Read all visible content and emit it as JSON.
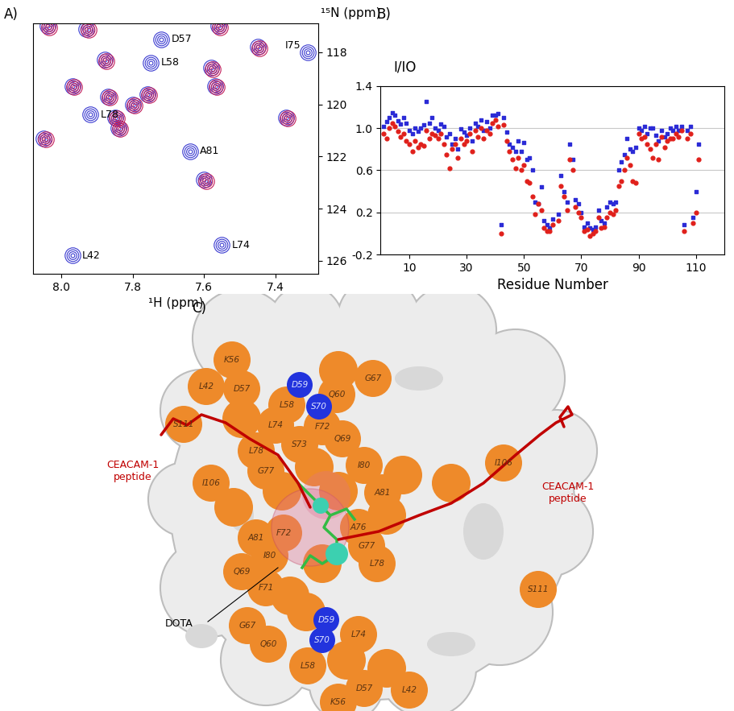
{
  "chart_data": [
    {
      "label": "A)",
      "type": "spectrum",
      "x_label": "¹H (ppm)",
      "y_label": "¹⁵N (ppm)",
      "xlim": [
        8.08,
        7.28
      ],
      "xticks": [
        8.0,
        7.8,
        7.6,
        7.4
      ],
      "ylim": [
        126.5,
        116.9
      ],
      "yticks": [
        118,
        120,
        122,
        124,
        126
      ],
      "series": [
        {
          "color": "#3a3ad0",
          "marker": "circle",
          "x": [
            8.04,
            7.93,
            7.56,
            7.45,
            7.88,
            7.97,
            7.58,
            7.87,
            7.8,
            7.76,
            7.85,
            7.84,
            8.05,
            7.57,
            7.37,
            7.6,
            7.72,
            7.75,
            7.31,
            7.92,
            7.64,
            7.55,
            7.97
          ],
          "values": [
            117.0,
            117.1,
            117.0,
            117.8,
            118.3,
            119.3,
            118.6,
            119.7,
            120.0,
            119.6,
            120.5,
            120.9,
            121.3,
            119.3,
            120.5,
            122.9,
            117.5,
            118.4,
            118.0,
            120.4,
            121.8,
            125.4,
            125.8
          ]
        },
        {
          "color": "#c41e5a",
          "marker": "circle",
          "x": [
            8.035,
            7.925,
            7.555,
            7.445,
            7.875,
            7.965,
            7.575,
            7.865,
            7.795,
            7.755,
            7.845,
            7.835,
            8.045,
            7.565,
            7.365,
            7.595
          ],
          "values": [
            117.05,
            117.15,
            117.05,
            117.85,
            118.35,
            119.35,
            118.65,
            119.75,
            120.05,
            119.65,
            120.55,
            120.95,
            121.35,
            119.35,
            120.55,
            122.95
          ]
        }
      ],
      "annotations": [
        {
          "text": "D57",
          "x": 7.72,
          "y": 117.5
        },
        {
          "text": "L58",
          "x": 7.75,
          "y": 118.4
        },
        {
          "text": "I75",
          "x": 7.31,
          "y": 118.0
        },
        {
          "text": "L78",
          "x": 7.92,
          "y": 120.4
        },
        {
          "text": "A81",
          "x": 7.64,
          "y": 121.8
        },
        {
          "text": "L74",
          "x": 7.55,
          "y": 125.4
        },
        {
          "text": "L42",
          "x": 7.97,
          "y": 125.8
        }
      ]
    },
    {
      "label": "B)",
      "type": "scatter",
      "x_label": "Residue Number",
      "y_label": "I/IO",
      "xlim": [
        0,
        120
      ],
      "xticks": [
        10,
        30,
        50,
        70,
        90,
        110
      ],
      "ylim": [
        -0.2,
        1.4
      ],
      "yticks": [
        -0.2,
        0.2,
        0.6,
        1.0,
        1.4
      ],
      "grid": true,
      "x": [
        1,
        2,
        3,
        4,
        5,
        6,
        7,
        8,
        9,
        10,
        11,
        12,
        13,
        14,
        15,
        16,
        17,
        18,
        19,
        20,
        21,
        22,
        23,
        24,
        25,
        26,
        27,
        28,
        29,
        30,
        31,
        32,
        33,
        34,
        35,
        36,
        37,
        38,
        39,
        40,
        41,
        42,
        43,
        44,
        45,
        46,
        47,
        48,
        49,
        50,
        51,
        52,
        53,
        54,
        55,
        56,
        57,
        58,
        59,
        60,
        61,
        62,
        63,
        64,
        65,
        66,
        67,
        68,
        69,
        70,
        71,
        72,
        73,
        74,
        75,
        76,
        77,
        78,
        79,
        80,
        81,
        82,
        83,
        84,
        85,
        86,
        87,
        88,
        89,
        90,
        91,
        92,
        93,
        94,
        95,
        96,
        97,
        98,
        99,
        100,
        101,
        102,
        103,
        104,
        105,
        106,
        107,
        108,
        109,
        110,
        111
      ],
      "series": [
        {
          "color": "#2b2bd6",
          "marker": "square",
          "values": [
            1.02,
            1.06,
            1.1,
            1.15,
            1.12,
            1.07,
            1.04,
            1.1,
            1.05,
            0.98,
            0.95,
            1.0,
            0.97,
            1.0,
            1.03,
            1.25,
            1.05,
            1.1,
            1.0,
            0.98,
            1.04,
            1.02,
            0.92,
            0.95,
            0.85,
            0.9,
            0.8,
            0.99,
            0.96,
            0.93,
            1.0,
            0.88,
            1.05,
            1.02,
            1.08,
            0.98,
            1.06,
            1.0,
            1.12,
            1.12,
            1.14,
            0.08,
            1.1,
            0.96,
            0.85,
            0.82,
            0.78,
            0.88,
            0.78,
            0.86,
            0.7,
            0.72,
            0.6,
            0.3,
            0.28,
            0.44,
            0.12,
            0.08,
            0.05,
            0.14,
            null,
            0.18,
            0.55,
            0.4,
            0.3,
            0.85,
            0.7,
            0.32,
            0.28,
            0.2,
            0.06,
            0.1,
            0.05,
            0.04,
            0.06,
            0.22,
            0.12,
            0.1,
            0.25,
            0.3,
            0.28,
            0.3,
            0.6,
            0.68,
            0.75,
            0.9,
            0.8,
            0.78,
            0.82,
            1.0,
            0.98,
            1.02,
            0.95,
            1.0,
            1.0,
            0.93,
            0.88,
            0.98,
            0.92,
            0.95,
            1.0,
            0.98,
            1.02,
            0.98,
            1.02,
            0.08,
            0.98,
            1.02,
            0.15,
            0.4,
            0.85
          ]
        },
        {
          "color": "#e0201b",
          "marker": "circle",
          "values": [
            0.95,
            0.9,
            1.0,
            1.05,
            1.02,
            0.97,
            0.92,
            0.95,
            0.88,
            0.85,
            0.78,
            0.88,
            0.82,
            0.85,
            0.83,
            0.98,
            0.9,
            0.95,
            0.93,
            0.9,
            0.95,
            0.85,
            0.75,
            0.62,
            0.8,
            0.85,
            0.72,
            0.9,
            0.85,
            0.88,
            0.95,
            0.78,
            0.98,
            0.92,
            1.0,
            0.9,
            0.98,
            0.95,
            1.05,
            1.08,
            1.02,
            0.0,
            1.03,
            0.88,
            0.78,
            0.7,
            0.62,
            0.72,
            0.6,
            0.65,
            0.5,
            0.48,
            0.35,
            0.18,
            0.28,
            0.22,
            0.05,
            0.02,
            0.02,
            0.08,
            null,
            0.12,
            0.45,
            0.35,
            0.22,
            0.7,
            0.6,
            0.25,
            0.2,
            0.15,
            0.02,
            0.04,
            -0.02,
            0.0,
            0.02,
            0.15,
            0.05,
            0.06,
            0.15,
            0.2,
            0.18,
            0.22,
            0.45,
            0.5,
            0.6,
            0.72,
            0.65,
            0.5,
            0.48,
            0.95,
            0.9,
            0.92,
            0.85,
            0.8,
            0.72,
            0.85,
            0.7,
            0.92,
            0.82,
            0.88,
            0.9,
            0.9,
            0.95,
            0.92,
            0.98,
            0.02,
            0.9,
            0.95,
            0.1,
            0.2,
            0.7
          ]
        }
      ]
    }
  ],
  "diagram": {
    "label": "C)",
    "peptide_labels": [
      "CEACAM-1\npeptide",
      "CEACAM-1\npeptide"
    ],
    "dota_label": "DOTA",
    "residues": [
      {
        "text": "K56",
        "color": "#ee8a2a"
      },
      {
        "text": "L42",
        "color": "#ee8a2a"
      },
      {
        "text": "S111",
        "color": "#ee8a2a"
      },
      {
        "text": "D57",
        "color": "#ee8a2a"
      },
      {
        "text": "D59",
        "color": "#2233dd"
      },
      {
        "text": "Q60",
        "color": "#ee8a2a"
      },
      {
        "text": "G67",
        "color": "#ee8a2a"
      },
      {
        "text": "L58",
        "color": "#ee8a2a"
      },
      {
        "text": "S70",
        "color": "#2233dd"
      },
      {
        "text": "L74",
        "color": "#ee8a2a"
      },
      {
        "text": "F72",
        "color": "#ee8a2a"
      },
      {
        "text": "S73",
        "color": "#ee8a2a"
      },
      {
        "text": "Q69",
        "color": "#ee8a2a"
      },
      {
        "text": "L78",
        "color": "#ee8a2a"
      },
      {
        "text": "I80",
        "color": "#ee8a2a"
      },
      {
        "text": "G77",
        "color": "#ee8a2a"
      },
      {
        "text": "I106",
        "color": "#ee8a2a"
      },
      {
        "text": "A81",
        "color": "#ee8a2a"
      },
      {
        "text": "F72",
        "color": "#ee8a2a"
      },
      {
        "text": "A76",
        "color": "#ee8a2a"
      },
      {
        "text": "G77",
        "color": "#ee8a2a"
      },
      {
        "text": "A81",
        "color": "#ee8a2a"
      },
      {
        "text": "I80",
        "color": "#ee8a2a"
      },
      {
        "text": "L78",
        "color": "#ee8a2a"
      },
      {
        "text": "Q69",
        "color": "#ee8a2a"
      },
      {
        "text": "F71",
        "color": "#ee8a2a"
      },
      {
        "text": "G67",
        "color": "#ee8a2a"
      },
      {
        "text": "D59",
        "color": "#2233dd"
      },
      {
        "text": "L74",
        "color": "#ee8a2a"
      },
      {
        "text": "Q60",
        "color": "#ee8a2a"
      },
      {
        "text": "S70",
        "color": "#2233dd"
      },
      {
        "text": "L58",
        "color": "#ee8a2a"
      },
      {
        "text": "D57",
        "color": "#ee8a2a"
      },
      {
        "text": "K56",
        "color": "#ee8a2a"
      },
      {
        "text": "L42",
        "color": "#ee8a2a"
      },
      {
        "text": "I106",
        "color": "#ee8a2a"
      },
      {
        "text": "S111",
        "color": "#ee8a2a"
      }
    ]
  }
}
